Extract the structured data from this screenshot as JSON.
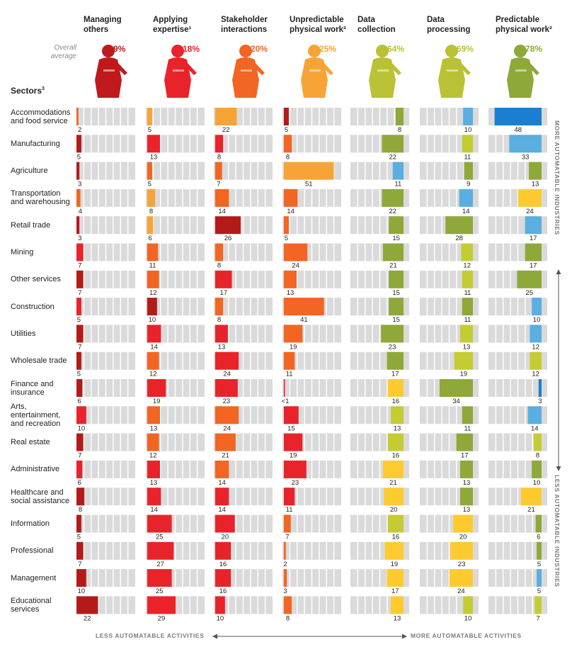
{
  "header": {
    "overall_average_label": "Overall\naverage",
    "sectors_label": "Sectors",
    "sectors_sup": "3"
  },
  "footer": {
    "less_activities": "LESS AUTOMATABLE ACTIVITIES",
    "more_activities": "MORE AUTOMATABLE ACTIVITIES"
  },
  "side_axis": {
    "more_industries": "MORE AUTOMATABLE INDUSTRIES",
    "less_industries": "LESS AUTOMATABLE INDUSTRIES"
  },
  "colors": {
    "dark_red": "#b31b1b",
    "red": "#e8242a",
    "orange": "#f26522",
    "light_orange": "#f7a437",
    "olive": "#8fa83a",
    "yellow_green": "#c4cc33",
    "yellow": "#fdcb30",
    "blue": "#1a7fd0",
    "light_blue": "#5aaee0",
    "track": "#dadada"
  },
  "chart_data": {
    "type": "bar",
    "unit": "percent of time spent",
    "categories": [
      "Managing others",
      "Applying expertise",
      "Stakeholder interactions",
      "Unpredictable physical work",
      "Data collection",
      "Data processing",
      "Predictable physical work"
    ],
    "category_headers": [
      "Managing\nothers",
      "Applying\nexpertise¹",
      "Stakeholder\ninteractions",
      "Unpredictable\nphysical work²",
      "Data\ncollection",
      "Data\nprocessing",
      "Predictable\nphysical work²"
    ],
    "overall_average": [
      "9%",
      "18%",
      "20%",
      "25%",
      "64%",
      "69%",
      "78%"
    ],
    "overall_average_colors": [
      "#c0191c",
      "#e8242a",
      "#f26522",
      "#f7a437",
      "#b9c234",
      "#b9c234",
      "#8fa83a"
    ],
    "rows": [
      {
        "sector": "Accommodations\nand food service",
        "values": [
          2,
          5,
          22,
          5,
          8,
          10,
          48
        ],
        "labels": [
          "2",
          "5",
          "22",
          "5",
          "8",
          "10",
          "48"
        ],
        "colors": [
          "orange",
          "light_orange",
          "light_orange",
          "dark_red",
          "olive",
          "light_blue",
          "blue"
        ]
      },
      {
        "sector": "Manufacturing",
        "values": [
          5,
          13,
          8,
          8,
          22,
          11,
          33
        ],
        "labels": [
          "5",
          "13",
          "8",
          "8",
          "22",
          "11",
          "33"
        ],
        "colors": [
          "dark_red",
          "red",
          "red",
          "orange",
          "olive",
          "yellow_green",
          "light_blue"
        ]
      },
      {
        "sector": "Agriculture",
        "values": [
          3,
          5,
          7,
          51,
          11,
          9,
          13
        ],
        "labels": [
          "3",
          "5",
          "7",
          "51",
          "11",
          "9",
          "13"
        ],
        "colors": [
          "dark_red",
          "orange",
          "orange",
          "light_orange",
          "light_blue",
          "olive",
          "olive"
        ]
      },
      {
        "sector": "Transportation\nand warehousing",
        "values": [
          4,
          8,
          14,
          14,
          22,
          14,
          24
        ],
        "labels": [
          "4",
          "8",
          "14",
          "14",
          "22",
          "14",
          "24"
        ],
        "colors": [
          "orange",
          "light_orange",
          "orange",
          "orange",
          "olive",
          "light_blue",
          "yellow"
        ]
      },
      {
        "sector": "Retail trade",
        "values": [
          3,
          6,
          26,
          5,
          15,
          28,
          17
        ],
        "labels": [
          "3",
          "6",
          "26",
          "5",
          "15",
          "28",
          "17"
        ],
        "colors": [
          "dark_red",
          "light_orange",
          "dark_red",
          "orange",
          "olive",
          "olive",
          "light_blue"
        ]
      },
      {
        "sector": "Mining",
        "values": [
          7,
          11,
          8,
          24,
          21,
          12,
          17
        ],
        "labels": [
          "7",
          "11",
          "8",
          "24",
          "21",
          "12",
          "17"
        ],
        "colors": [
          "red",
          "orange",
          "orange",
          "orange",
          "olive",
          "yellow_green",
          "olive"
        ]
      },
      {
        "sector": "Other services",
        "values": [
          7,
          12,
          17,
          13,
          15,
          11,
          25
        ],
        "labels": [
          "7",
          "12",
          "17",
          "13",
          "15",
          "11",
          "25"
        ],
        "colors": [
          "dark_red",
          "orange",
          "red",
          "orange",
          "olive",
          "yellow_green",
          "olive"
        ]
      },
      {
        "sector": "Construction",
        "values": [
          5,
          10,
          8,
          41,
          15,
          11,
          10
        ],
        "labels": [
          "5",
          "10",
          "8",
          "41",
          "15",
          "11",
          "10"
        ],
        "colors": [
          "red",
          "dark_red",
          "orange",
          "orange",
          "olive",
          "olive",
          "light_blue"
        ]
      },
      {
        "sector": "Utilities",
        "values": [
          7,
          14,
          13,
          19,
          23,
          13,
          12
        ],
        "labels": [
          "7",
          "14",
          "13",
          "19",
          "23",
          "13",
          "12"
        ],
        "colors": [
          "dark_red",
          "red",
          "red",
          "orange",
          "olive",
          "yellow_green",
          "light_blue"
        ]
      },
      {
        "sector": "Wholesale trade",
        "values": [
          5,
          12,
          24,
          11,
          17,
          19,
          12
        ],
        "labels": [
          "5",
          "12",
          "24",
          "11",
          "17",
          "19",
          "12"
        ],
        "colors": [
          "dark_red",
          "orange",
          "red",
          "orange",
          "olive",
          "yellow_green",
          "yellow_green"
        ]
      },
      {
        "sector": "Finance and\ninsurance",
        "values": [
          6,
          19,
          23,
          0.5,
          16,
          34,
          3
        ],
        "labels": [
          "6",
          "19",
          "23",
          "<1",
          "16",
          "34",
          "3"
        ],
        "colors": [
          "dark_red",
          "red",
          "red",
          "red",
          "yellow",
          "olive",
          "blue"
        ]
      },
      {
        "sector": "Arts,\nentertainment,\nand recreation",
        "values": [
          10,
          13,
          24,
          15,
          13,
          11,
          14
        ],
        "labels": [
          "10",
          "13",
          "24",
          "15",
          "13",
          "11",
          "14"
        ],
        "colors": [
          "red",
          "orange",
          "orange",
          "red",
          "yellow_green",
          "olive",
          "light_blue"
        ]
      },
      {
        "sector": "Real estate",
        "values": [
          7,
          12,
          21,
          19,
          16,
          17,
          8
        ],
        "labels": [
          "7",
          "12",
          "21",
          "19",
          "16",
          "17",
          "8"
        ],
        "colors": [
          "dark_red",
          "orange",
          "orange",
          "red",
          "yellow_green",
          "olive",
          "yellow_green"
        ]
      },
      {
        "sector": "Administrative",
        "values": [
          6,
          13,
          14,
          23,
          21,
          13,
          10
        ],
        "labels": [
          "6",
          "13",
          "14",
          "23",
          "21",
          "13",
          "10"
        ],
        "colors": [
          "red",
          "red",
          "orange",
          "red",
          "yellow",
          "olive",
          "olive"
        ]
      },
      {
        "sector": "Healthcare and\nsocial assistance",
        "values": [
          8,
          14,
          14,
          11,
          20,
          13,
          21
        ],
        "labels": [
          "8",
          "14",
          "14",
          "11",
          "20",
          "13",
          "21"
        ],
        "colors": [
          "dark_red",
          "red",
          "red",
          "red",
          "yellow",
          "olive",
          "yellow"
        ]
      },
      {
        "sector": "Information",
        "values": [
          5,
          25,
          20,
          7,
          16,
          20,
          6
        ],
        "labels": [
          "5",
          "25",
          "20",
          "7",
          "16",
          "20",
          "6"
        ],
        "colors": [
          "dark_red",
          "red",
          "red",
          "orange",
          "yellow_green",
          "yellow",
          "olive"
        ]
      },
      {
        "sector": "Professional",
        "values": [
          7,
          27,
          16,
          2,
          19,
          23,
          5
        ],
        "labels": [
          "7",
          "27",
          "16",
          "2",
          "19",
          "23",
          "5"
        ],
        "colors": [
          "dark_red",
          "red",
          "red",
          "orange",
          "yellow",
          "yellow",
          "olive"
        ]
      },
      {
        "sector": "Management",
        "values": [
          10,
          25,
          16,
          3,
          17,
          24,
          5
        ],
        "labels": [
          "10",
          "25",
          "16",
          "3",
          "17",
          "24",
          "5"
        ],
        "colors": [
          "dark_red",
          "red",
          "red",
          "orange",
          "yellow",
          "yellow",
          "light_blue"
        ]
      },
      {
        "sector": "Educational\nservices",
        "values": [
          22,
          29,
          10,
          8,
          13,
          10,
          7
        ],
        "labels": [
          "22",
          "29",
          "10",
          "8",
          "13",
          "10",
          "7"
        ],
        "colors": [
          "dark_red",
          "red",
          "red",
          "orange",
          "yellow",
          "yellow_green",
          "yellow_green"
        ]
      }
    ],
    "bar_alignment": [
      "left",
      "left",
      "left",
      "left",
      "right",
      "right",
      "right"
    ]
  }
}
